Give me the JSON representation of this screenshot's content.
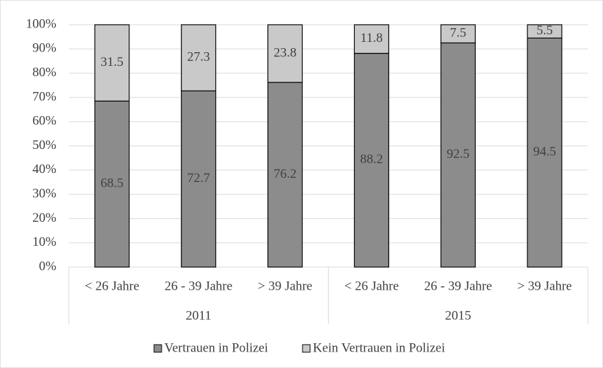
{
  "chart_data": {
    "type": "stacked_bar",
    "groups": [
      {
        "name": "2011",
        "categories": [
          "< 26 Jahre",
          "26 - 39 Jahre",
          "> 39 Jahre"
        ]
      },
      {
        "name": "2015",
        "categories": [
          "< 26 Jahre",
          "26 - 39 Jahre",
          "> 39 Jahre"
        ]
      }
    ],
    "series": [
      {
        "name": "Vertrauen in Polizei",
        "color": "#8c8c8c",
        "values": [
          68.5,
          72.7,
          76.2,
          88.2,
          92.5,
          94.5
        ]
      },
      {
        "name": "Kein Vertrauen in Polizei",
        "color": "#c9c9c9",
        "values": [
          31.5,
          27.3,
          23.8,
          11.8,
          7.5,
          5.5
        ]
      }
    ],
    "ylim": [
      0,
      100
    ],
    "yticks": [
      {
        "value": 0,
        "label": "0%"
      },
      {
        "value": 10,
        "label": "10%"
      },
      {
        "value": 20,
        "label": "20%"
      },
      {
        "value": 30,
        "label": "30%"
      },
      {
        "value": 40,
        "label": "40%"
      },
      {
        "value": 50,
        "label": "50%"
      },
      {
        "value": 60,
        "label": "60%"
      },
      {
        "value": 70,
        "label": "70%"
      },
      {
        "value": 80,
        "label": "80%"
      },
      {
        "value": 90,
        "label": "90%"
      },
      {
        "value": 100,
        "label": "100%"
      }
    ],
    "grid": true,
    "legend": "bottom"
  }
}
